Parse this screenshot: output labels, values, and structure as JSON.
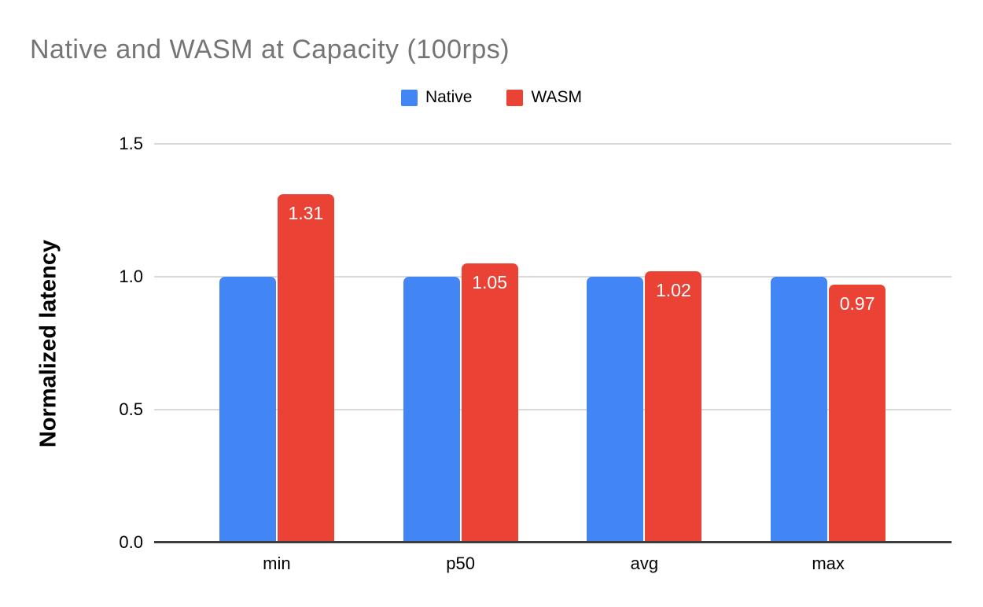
{
  "title": "Native and WASM at Capacity (100rps)",
  "chart_data": {
    "type": "bar",
    "title": "Native and WASM at Capacity (100rps)",
    "categories": [
      "min",
      "p50",
      "avg",
      "max"
    ],
    "series": [
      {
        "name": "Native",
        "color": "#4285F4",
        "values": [
          1.0,
          1.0,
          1.0,
          1.0
        ],
        "labels": [
          "",
          "",
          "",
          ""
        ]
      },
      {
        "name": "WASM",
        "color": "#EA4335",
        "values": [
          1.31,
          1.05,
          1.02,
          0.97
        ],
        "labels": [
          "1.31",
          "1.05",
          "1.02",
          "0.97"
        ]
      }
    ],
    "xlabel": "",
    "ylabel": "Normalized latency",
    "ylim": [
      0,
      1.5
    ],
    "yticks": [
      "0.0",
      "0.5",
      "1.0",
      "1.5"
    ],
    "grid": true,
    "legend_position": "top",
    "bar_label_color": "#ffffff"
  },
  "colors": {
    "title_text": "#757575",
    "gridline": "#dadada",
    "axis_line": "#3c3c3c",
    "background": "#ffffff",
    "tick_text": "#000000"
  }
}
